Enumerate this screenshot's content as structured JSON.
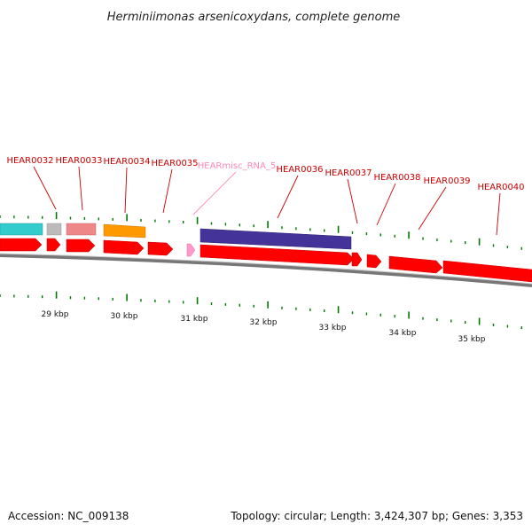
{
  "title": "Herminiimonas arsenicoxydans, complete genome",
  "footer": {
    "accession": "Accession: NC_009138",
    "topology": "Topology: circular; Length: 3,424,307 bp; Genes: 3,353"
  },
  "colors": {
    "gene": "#ff0000",
    "rna": "#ff99cc",
    "label": "#cc0000",
    "rna_label": "#ff88bb",
    "tick": "#007700",
    "backbone": "#888888"
  },
  "kbp_labels": [
    "29 kbp",
    "30 kbp",
    "31 kbp",
    "32 kbp",
    "33 kbp",
    "34 kbp",
    "35 kbp"
  ],
  "gene_labels": [
    {
      "name": "HEAR0032",
      "rna": false
    },
    {
      "name": "HEAR0033",
      "rna": false
    },
    {
      "name": "HEAR0034",
      "rna": false
    },
    {
      "name": "HEAR0035",
      "rna": false
    },
    {
      "name": "HEARmisc_RNA_5",
      "rna": true
    },
    {
      "name": "HEAR0036",
      "rna": false
    },
    {
      "name": "HEAR0037",
      "rna": false
    },
    {
      "name": "HEAR0038",
      "rna": false
    },
    {
      "name": "HEAR0039",
      "rna": false
    },
    {
      "name": "HEAR0040",
      "rna": false
    }
  ],
  "cog_blocks": [
    {
      "name": "cog-cyan",
      "color": "#33cccc"
    },
    {
      "name": "cog-grey",
      "color": "#bbbbbb"
    },
    {
      "name": "cog-pink",
      "color": "#ee8888"
    },
    {
      "name": "cog-orange",
      "color": "#ff9900"
    },
    {
      "name": "cog-purple",
      "color": "#443399"
    }
  ]
}
